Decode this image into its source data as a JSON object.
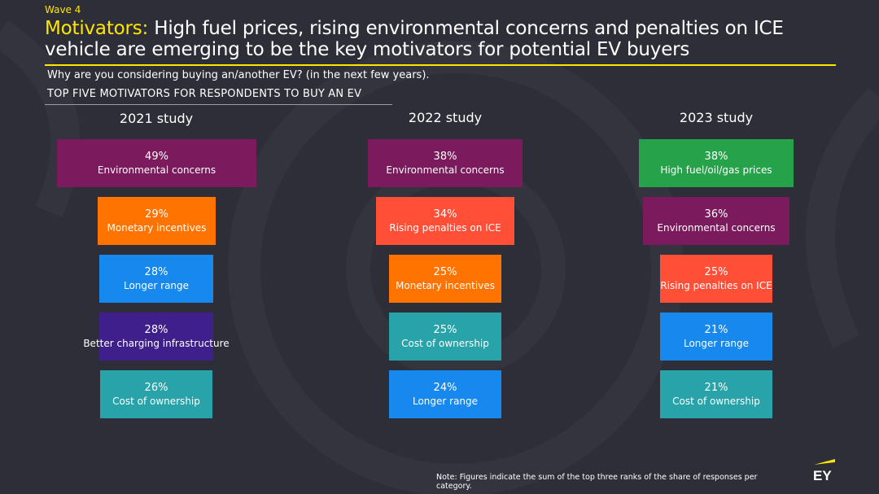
{
  "header": {
    "wave": "Wave 4",
    "title_highlight": "Motivators:",
    "title_rest": " High fuel prices, rising environmental concerns and penalties on ICE vehicle are emerging to be the key motivators for potential EV buyers",
    "question": "Why are you considering buying an/another EV? (in the next few years).",
    "subhead": "TOP FIVE MOTIVATORS FOR RESPONDENTS TO BUY AN EV"
  },
  "colors": {
    "background": "#2e2e38",
    "accent": "#ffe600",
    "Environmental concerns": "#7b1a5c",
    "Monetary incentives": "#ff7300",
    "Longer range": "#1688ee",
    "Better charging infrastructure": "#3e1f8c",
    "Cost of ownership": "#27a3a9",
    "Rising penalties on ICE": "#ff4f37",
    "High fuel/oil/gas prices": "#26a24a"
  },
  "chart_data": {
    "type": "bar",
    "title": "TOP FIVE MOTIVATORS FOR RESPONDENTS TO BUY AN EV",
    "unit": "%",
    "xlim": [
      0,
      50
    ],
    "studies": [
      {
        "name": "2021 study",
        "items": [
          {
            "label": "Environmental concerns",
            "value": 49,
            "display": "49%"
          },
          {
            "label": "Monetary incentives",
            "value": 29,
            "display": "29%"
          },
          {
            "label": "Longer range",
            "value": 28,
            "display": "28%"
          },
          {
            "label": "Better charging infrastructure",
            "value": 28,
            "display": "28%"
          },
          {
            "label": "Cost of ownership",
            "value": 26,
            "display": "26%"
          }
        ]
      },
      {
        "name": "2022 study",
        "items": [
          {
            "label": "Environmental concerns",
            "value": 38,
            "display": "38%"
          },
          {
            "label": "Rising penalties on ICE",
            "value": 34,
            "display": "34%"
          },
          {
            "label": "Monetary incentives",
            "value": 25,
            "display": "25%"
          },
          {
            "label": "Cost of ownership",
            "value": 25,
            "display": "25%"
          },
          {
            "label": "Longer range",
            "value": 24,
            "display": "24%"
          }
        ]
      },
      {
        "name": "2023 study",
        "items": [
          {
            "label": "High fuel/oil/gas prices",
            "value": 38,
            "display": "38%"
          },
          {
            "label": "Environmental concerns",
            "value": 36,
            "display": "36%"
          },
          {
            "label": "Rising penalties on ICE",
            "value": 25,
            "display": "25%"
          },
          {
            "label": "Longer range",
            "value": 21,
            "display": "21%"
          },
          {
            "label": "Cost of ownership",
            "value": 21,
            "display": "21%"
          }
        ]
      }
    ]
  },
  "footer": {
    "note": "Note: Figures indicate the sum of the top three ranks of the share of responses per category.",
    "logo_text": "EY"
  }
}
